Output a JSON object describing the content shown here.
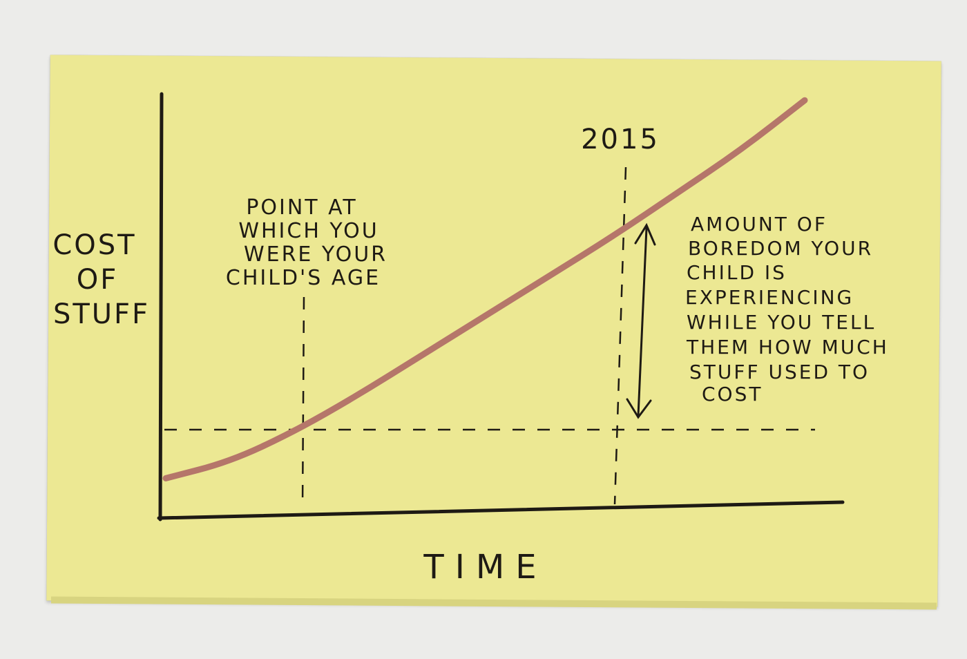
{
  "chart_data": {
    "type": "line",
    "title": "",
    "xlabel": "TIME",
    "ylabel": [
      "COST",
      "OF",
      "STUFF"
    ],
    "x_marker_label": "2015",
    "annotation_childhood": [
      "POINT AT",
      "WHICH YOU",
      "WERE YOUR",
      "CHILD'S AGE"
    ],
    "annotation_boredom": [
      "AMOUNT OF",
      "BOREDOM YOUR",
      "CHILD IS",
      "EXPERIENCING",
      "WHILE YOU TELL",
      "THEM HOW MUCH",
      "STUFF USED TO",
      "COST"
    ],
    "series": [
      {
        "values": [
          [
            0,
            0.12
          ],
          [
            0.1,
            0.17
          ],
          [
            0.2,
            0.26
          ],
          [
            0.3,
            0.37
          ],
          [
            0.4,
            0.49
          ],
          [
            0.5,
            0.61
          ],
          [
            0.6,
            0.73
          ],
          [
            0.7,
            0.85
          ],
          [
            0.8,
            0.98
          ],
          [
            0.9,
            1.11
          ],
          [
            1.0,
            1.26
          ]
        ]
      }
    ],
    "colors": {
      "line": "#b5766a",
      "ink": "#1e1a14",
      "note": "#ece893"
    },
    "grid": false
  }
}
